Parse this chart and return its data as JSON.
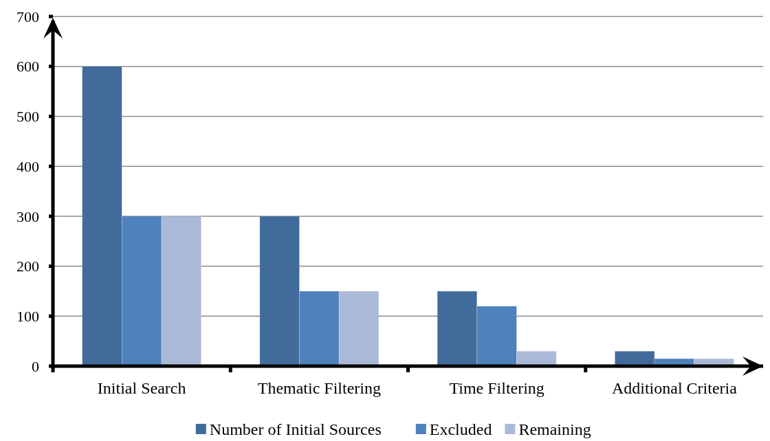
{
  "chart_data": {
    "type": "bar",
    "categories": [
      "Initial Search",
      "Thematic Filtering",
      "Time Filtering",
      "Additional Criteria"
    ],
    "series": [
      {
        "name": "Number of Initial Sources",
        "color": "#416b9b",
        "values": [
          600,
          300,
          150,
          30
        ]
      },
      {
        "name": "Excluded",
        "color": "#4f81bd",
        "values": [
          300,
          150,
          120,
          15
        ]
      },
      {
        "name": "Remaining",
        "color": "#aab9d7",
        "values": [
          300,
          150,
          30,
          15
        ]
      }
    ],
    "ylim": [
      0,
      700
    ],
    "yticks": [
      0,
      100,
      200,
      300,
      400,
      500,
      600,
      700
    ],
    "grid": "y",
    "legend": "bottom"
  }
}
